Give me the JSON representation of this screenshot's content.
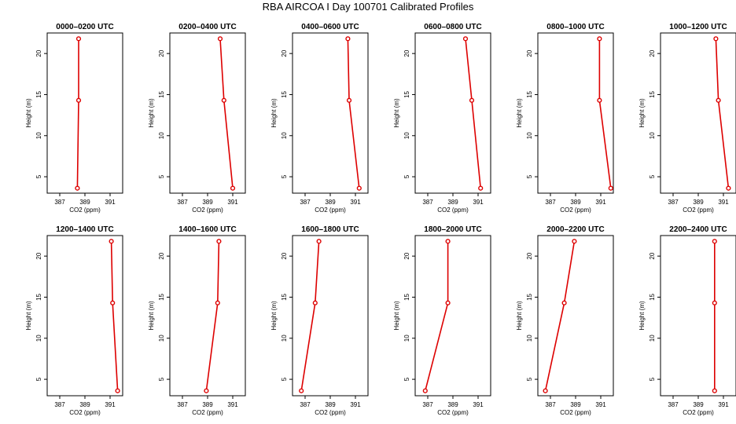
{
  "title": "RBA AIRCOA I  Day 100701  Calibrated Profiles",
  "colors": {
    "profile_line": "#dd0000",
    "marker": "#dd0000",
    "axis": "#000000"
  },
  "chart_data": [
    {
      "type": "line",
      "title": "0000–0200 UTC",
      "xlabel": "CO2 (ppm)",
      "ylabel": "Height (m)",
      "xlim": [
        386,
        392
      ],
      "ylim": [
        3,
        22.5
      ],
      "xticks": [
        387,
        389,
        391
      ],
      "yticks": [
        5,
        10,
        15,
        20
      ],
      "series": [
        {
          "x": [
            388.4,
            388.5,
            388.5
          ],
          "y": [
            3.6,
            14.3,
            21.8
          ]
        }
      ]
    },
    {
      "type": "line",
      "title": "0200–0400 UTC",
      "xlabel": "CO2 (ppm)",
      "ylabel": "Height (m)",
      "xlim": [
        386,
        392
      ],
      "ylim": [
        3,
        22.5
      ],
      "xticks": [
        387,
        389,
        391
      ],
      "yticks": [
        5,
        10,
        15,
        20
      ],
      "series": [
        {
          "x": [
            391.0,
            390.3,
            390.0
          ],
          "y": [
            3.6,
            14.3,
            21.8
          ]
        }
      ]
    },
    {
      "type": "line",
      "title": "0400–0600 UTC",
      "xlabel": "CO2 (ppm)",
      "ylabel": "Height (m)",
      "xlim": [
        386,
        392
      ],
      "ylim": [
        3,
        22.5
      ],
      "xticks": [
        387,
        389,
        391
      ],
      "yticks": [
        5,
        10,
        15,
        20
      ],
      "series": [
        {
          "x": [
            391.3,
            390.5,
            390.4
          ],
          "y": [
            3.6,
            14.3,
            21.8
          ]
        }
      ]
    },
    {
      "type": "line",
      "title": "0600–0800 UTC",
      "xlabel": "CO2 (ppm)",
      "ylabel": "Height (m)",
      "xlim": [
        386,
        392
      ],
      "ylim": [
        3,
        22.5
      ],
      "xticks": [
        387,
        389,
        391
      ],
      "yticks": [
        5,
        10,
        15,
        20
      ],
      "series": [
        {
          "x": [
            391.2,
            390.5,
            390.0
          ],
          "y": [
            3.6,
            14.3,
            21.8
          ]
        }
      ]
    },
    {
      "type": "line",
      "title": "0800–1000 UTC",
      "xlabel": "CO2 (ppm)",
      "ylabel": "Height (m)",
      "xlim": [
        386,
        392
      ],
      "ylim": [
        3,
        22.5
      ],
      "xticks": [
        387,
        389,
        391
      ],
      "yticks": [
        5,
        10,
        15,
        20
      ],
      "series": [
        {
          "x": [
            391.8,
            390.9,
            390.9
          ],
          "y": [
            3.6,
            14.3,
            21.8
          ]
        }
      ]
    },
    {
      "type": "line",
      "title": "1000–1200 UTC",
      "xlabel": "CO2 (ppm)",
      "ylabel": "Height (m)",
      "xlim": [
        386,
        392
      ],
      "ylim": [
        3,
        22.5
      ],
      "xticks": [
        387,
        389,
        391
      ],
      "yticks": [
        5,
        10,
        15,
        20
      ],
      "series": [
        {
          "x": [
            391.4,
            390.6,
            390.4
          ],
          "y": [
            3.6,
            14.3,
            21.8
          ]
        }
      ]
    },
    {
      "type": "line",
      "title": "1200–1400 UTC",
      "xlabel": "CO2 (ppm)",
      "ylabel": "Height (m)",
      "xlim": [
        386,
        392
      ],
      "ylim": [
        3,
        22.5
      ],
      "xticks": [
        387,
        389,
        391
      ],
      "yticks": [
        5,
        10,
        15,
        20
      ],
      "series": [
        {
          "x": [
            391.6,
            391.2,
            391.1
          ],
          "y": [
            3.6,
            14.3,
            21.8
          ]
        }
      ]
    },
    {
      "type": "line",
      "title": "1400–1600 UTC",
      "xlabel": "CO2 (ppm)",
      "ylabel": "Height (m)",
      "xlim": [
        386,
        392
      ],
      "ylim": [
        3,
        22.5
      ],
      "xticks": [
        387,
        389,
        391
      ],
      "yticks": [
        5,
        10,
        15,
        20
      ],
      "series": [
        {
          "x": [
            388.9,
            389.8,
            389.9
          ],
          "y": [
            3.6,
            14.3,
            21.8
          ]
        }
      ]
    },
    {
      "type": "line",
      "title": "1600–1800 UTC",
      "xlabel": "CO2 (ppm)",
      "ylabel": "Height (m)",
      "xlim": [
        386,
        392
      ],
      "ylim": [
        3,
        22.5
      ],
      "xticks": [
        387,
        389,
        391
      ],
      "yticks": [
        5,
        10,
        15,
        20
      ],
      "series": [
        {
          "x": [
            386.7,
            387.8,
            388.1
          ],
          "y": [
            3.6,
            14.3,
            21.8
          ]
        }
      ]
    },
    {
      "type": "line",
      "title": "1800–2000 UTC",
      "xlabel": "CO2 (ppm)",
      "ylabel": "Height (m)",
      "xlim": [
        386,
        392
      ],
      "ylim": [
        3,
        22.5
      ],
      "xticks": [
        387,
        389,
        391
      ],
      "yticks": [
        5,
        10,
        15,
        20
      ],
      "series": [
        {
          "x": [
            386.8,
            388.6,
            388.6
          ],
          "y": [
            3.6,
            14.3,
            21.8
          ]
        }
      ]
    },
    {
      "type": "line",
      "title": "2000–2200 UTC",
      "xlabel": "CO2 (ppm)",
      "ylabel": "Height (m)",
      "xlim": [
        386,
        392
      ],
      "ylim": [
        3,
        22.5
      ],
      "xticks": [
        387,
        389,
        391
      ],
      "yticks": [
        5,
        10,
        15,
        20
      ],
      "series": [
        {
          "x": [
            386.6,
            388.1,
            388.9
          ],
          "y": [
            3.6,
            14.3,
            21.8
          ]
        }
      ]
    },
    {
      "type": "line",
      "title": "2200–2400 UTC",
      "xlabel": "CO2 (ppm)",
      "ylabel": "Height (m)",
      "xlim": [
        386,
        392
      ],
      "ylim": [
        3,
        22.5
      ],
      "xticks": [
        387,
        389,
        391
      ],
      "yticks": [
        5,
        10,
        15,
        20
      ],
      "series": [
        {
          "x": [
            390.3,
            390.3,
            390.3
          ],
          "y": [
            3.6,
            14.3,
            21.8
          ]
        }
      ]
    }
  ]
}
